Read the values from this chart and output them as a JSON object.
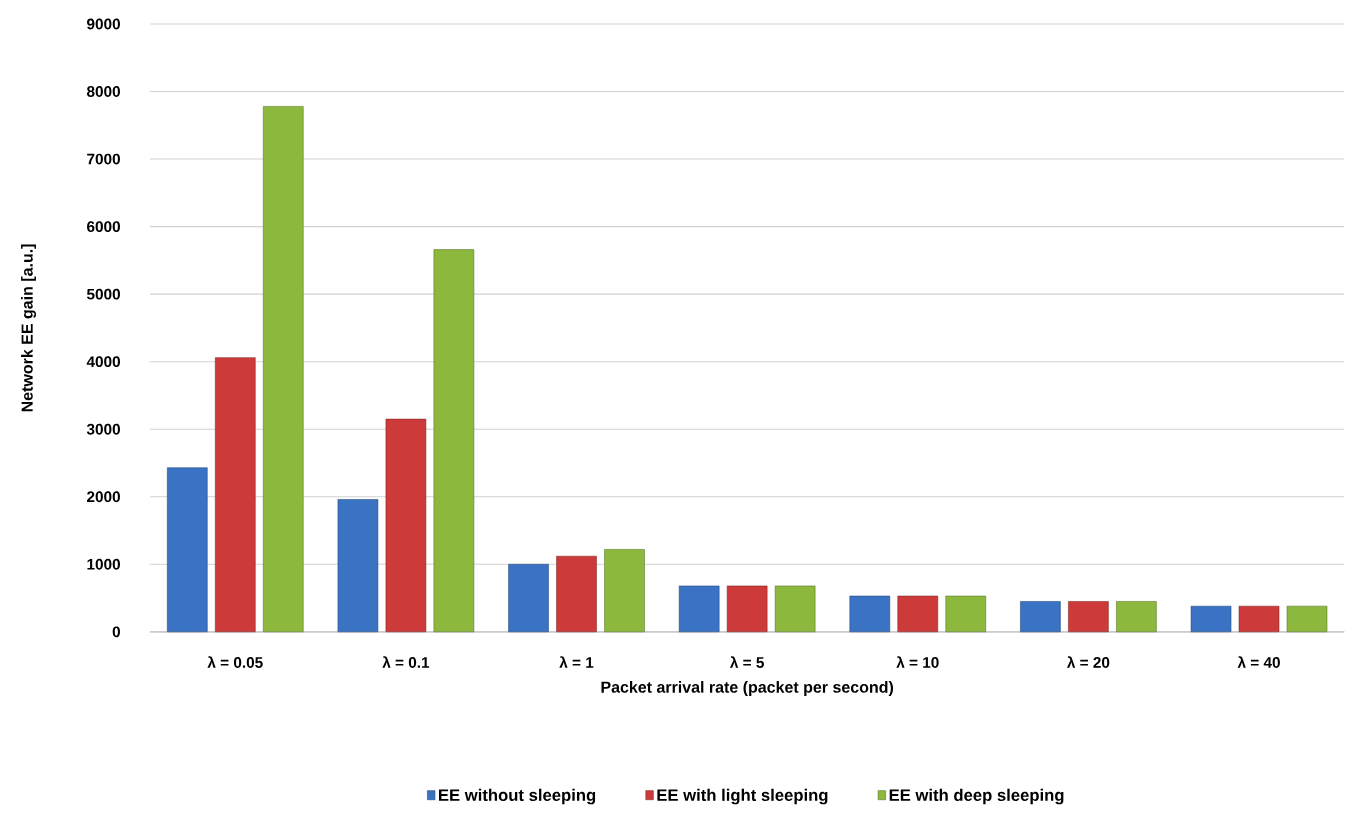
{
  "chart_data": {
    "type": "bar",
    "xlabel": "Packet arrival rate (packet per second)",
    "ylabel": "Network EE gain [a.u.]",
    "categories": [
      "λ = 0.05",
      "λ = 0.1",
      "λ = 1",
      "λ = 5",
      "λ = 10",
      "λ = 20",
      "λ = 40"
    ],
    "series": [
      {
        "name": "EE without sleeping",
        "color": "#3a72c4",
        "values": [
          2430,
          1960,
          1000,
          680,
          530,
          450,
          380
        ]
      },
      {
        "name": "EE with light sleeping",
        "color": "#cc3a3a",
        "values": [
          4060,
          3150,
          1120,
          680,
          530,
          450,
          380
        ]
      },
      {
        "name": "EE with deep sleeping",
        "color": "#8db83e",
        "values": [
          7780,
          5660,
          1220,
          680,
          530,
          450,
          380
        ]
      }
    ],
    "ylim": [
      0,
      9000
    ],
    "yticks": [
      0,
      1000,
      2000,
      3000,
      4000,
      5000,
      6000,
      7000,
      8000,
      9000
    ],
    "grid": "y",
    "legend": "bottom"
  }
}
